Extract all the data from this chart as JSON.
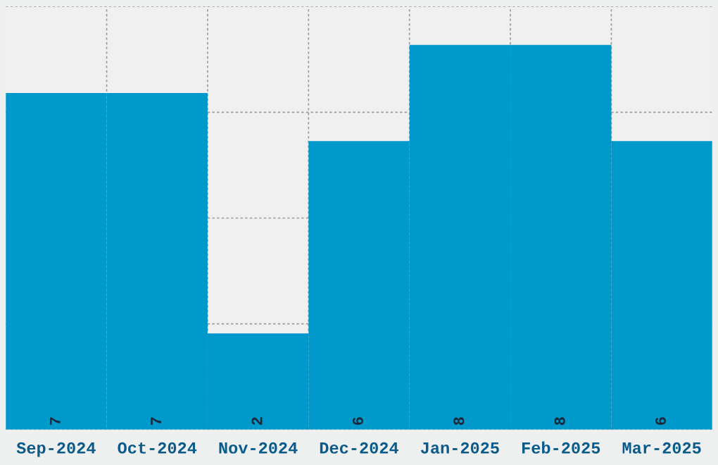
{
  "chart_data": {
    "type": "bar",
    "categories": [
      "Sep-2024",
      "Oct-2024",
      "Nov-2024",
      "Dec-2024",
      "Jan-2025",
      "Feb-2025",
      "Mar-2025"
    ],
    "values": [
      7,
      7,
      2,
      6,
      8,
      8,
      6
    ],
    "color": "#0099cc",
    "ylim": [
      0,
      8.8
    ],
    "yticks": [
      {
        "value": 0,
        "label": null
      },
      {
        "value": 2.2,
        "label": null
      },
      {
        "value": 4.4,
        "label": null
      },
      {
        "value": 6.6,
        "label": null
      },
      {
        "value": 8.8,
        "label": null
      }
    ],
    "tick_labels": "x",
    "grid": true,
    "data_labels": true
  }
}
